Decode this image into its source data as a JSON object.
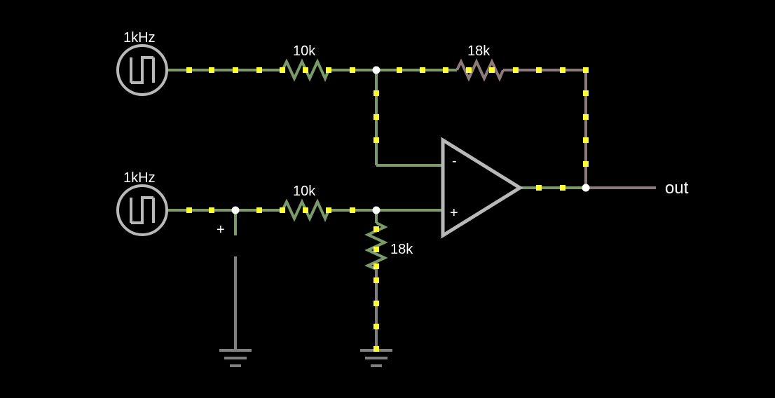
{
  "colors": {
    "background": "#000000",
    "wire_green": "#7a9a6a",
    "wire_out": "#8c7a78",
    "wire_ground": "#808080",
    "component_gray": "#b8b8b8",
    "current_dot": "#ffff33",
    "node": "#ffffff",
    "text": "#ffffff"
  },
  "labels": {
    "source_top": "1kHz",
    "source_bottom": "1kHz",
    "r_in_top": "10k",
    "r_feedback": "18k",
    "r_in_bottom": "10k",
    "r_ground": "18k",
    "opamp_minus": "-",
    "opamp_plus": "+",
    "ground_sign": "+",
    "output": "out"
  }
}
